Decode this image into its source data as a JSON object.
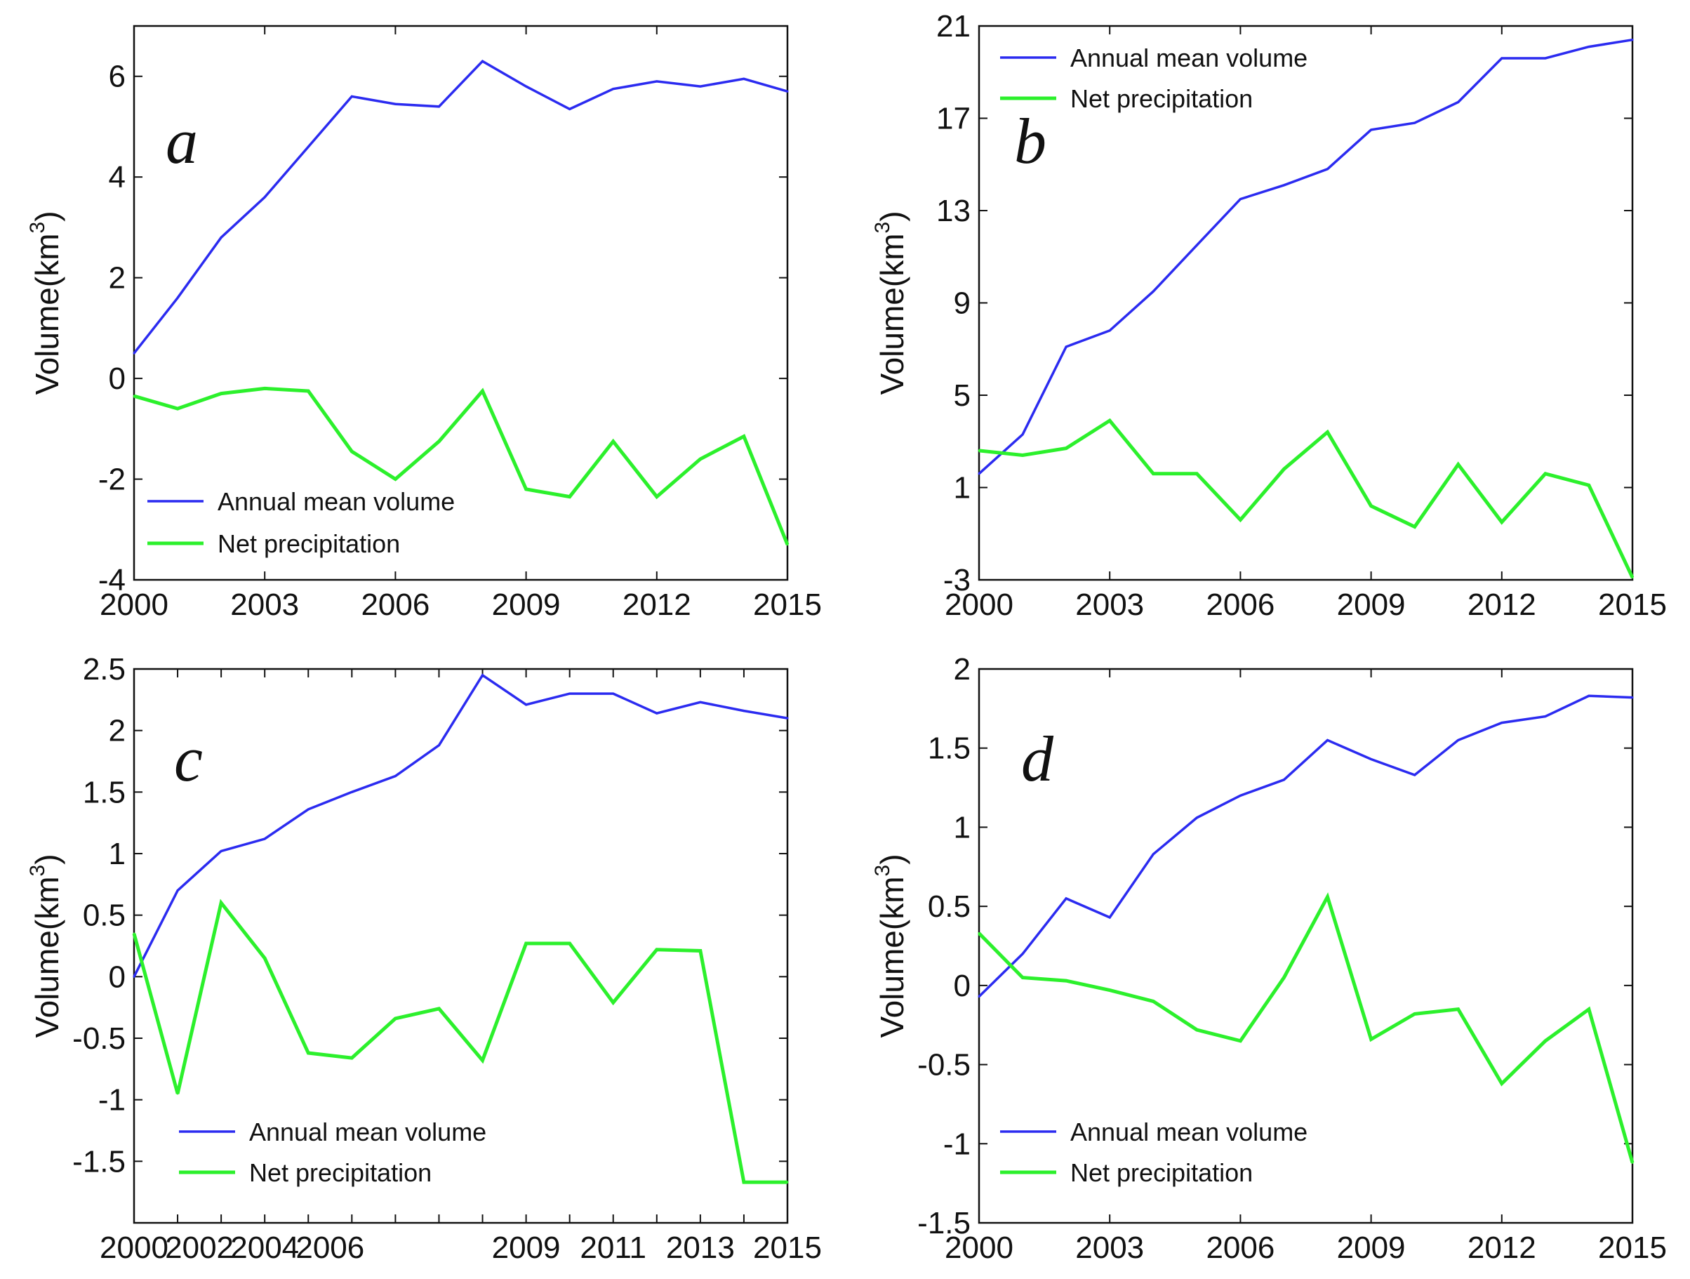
{
  "figure": {
    "blue_color": "#2B2BF0",
    "green_color": "#2CF02C"
  },
  "chart_data": [
    {
      "type": "line",
      "panel": "a",
      "ylabel": "Volume(km³)",
      "ylabel_main": "Volume(km",
      "ylabel_sup": "3",
      "ylabel_close": ")",
      "xlim": [
        2000,
        2015
      ],
      "ylim": [
        -4,
        7
      ],
      "xticks": [
        2000,
        2003,
        2006,
        2009,
        2012,
        2015
      ],
      "xtick_labels": [
        "2000",
        "2003",
        "2006",
        "2009",
        "2012",
        "2015"
      ],
      "yticks": [
        -4,
        -2,
        0,
        2,
        4,
        6
      ],
      "ytick_labels": [
        "-4",
        "-2",
        "0",
        "2",
        "4",
        "6"
      ],
      "legend_position": "bottom-left",
      "legend": [
        "Annual mean volume",
        "Net precipitation"
      ],
      "x": [
        2000,
        2001,
        2002,
        2003,
        2004,
        2005,
        2006,
        2007,
        2008,
        2009,
        2010,
        2011,
        2012,
        2013,
        2014,
        2015
      ],
      "series": [
        {
          "name": "Annual mean volume",
          "color": "#2B2BF0",
          "values": [
            0.5,
            1.6,
            2.8,
            3.6,
            4.6,
            5.6,
            5.45,
            5.4,
            6.3,
            5.8,
            5.35,
            5.75,
            5.9,
            5.8,
            5.95,
            5.7
          ]
        },
        {
          "name": "Net precipitation",
          "color": "#2CF02C",
          "values": [
            -0.35,
            -0.6,
            -0.3,
            -0.2,
            -0.25,
            -1.45,
            -2.0,
            -1.25,
            -0.25,
            -2.2,
            -2.35,
            -1.25,
            -2.35,
            -1.6,
            -1.15,
            -3.3
          ]
        }
      ]
    },
    {
      "type": "line",
      "panel": "b",
      "ylabel": "Volume(km³)",
      "ylabel_main": "Volume(km",
      "ylabel_sup": "3",
      "ylabel_close": ")",
      "xlim": [
        2000,
        2015
      ],
      "ylim": [
        -3,
        21
      ],
      "xticks": [
        2000,
        2003,
        2006,
        2009,
        2012,
        2015
      ],
      "xtick_labels": [
        "2000",
        "2003",
        "2006",
        "2009",
        "2012",
        "2015"
      ],
      "yticks": [
        -3,
        1,
        5,
        9,
        13,
        17,
        21
      ],
      "ytick_labels": [
        "-3",
        "1",
        "5",
        "9",
        "13",
        "17",
        "21"
      ],
      "legend_position": "top-left",
      "legend": [
        "Annual mean volume",
        "Net precipitation"
      ],
      "x": [
        2000,
        2001,
        2002,
        2003,
        2004,
        2005,
        2006,
        2007,
        2008,
        2009,
        2010,
        2011,
        2012,
        2013,
        2014,
        2015
      ],
      "series": [
        {
          "name": "Annual mean volume",
          "color": "#2B2BF0",
          "values": [
            1.6,
            3.3,
            7.1,
            7.8,
            9.5,
            11.5,
            13.5,
            14.1,
            14.8,
            16.5,
            16.8,
            17.7,
            19.6,
            19.6,
            20.1,
            20.4
          ]
        },
        {
          "name": "Net precipitation",
          "color": "#2CF02C",
          "values": [
            2.6,
            2.4,
            2.7,
            3.9,
            1.6,
            1.6,
            -0.4,
            1.8,
            3.4,
            0.2,
            -0.7,
            2.0,
            -0.5,
            1.6,
            1.1,
            -2.9
          ]
        }
      ]
    },
    {
      "type": "line",
      "panel": "c",
      "ylabel": "Volume(km³)",
      "ylabel_main": "Volume(km",
      "ylabel_sup": "3",
      "ylabel_close": ")",
      "xlim": [
        2000,
        2015
      ],
      "ylim": [
        -2,
        2.5
      ],
      "xticks": [
        2000,
        2001,
        2002,
        2003,
        2004,
        2005,
        2006,
        2007,
        2008,
        2009,
        2010,
        2011,
        2012,
        2013,
        2014,
        2015
      ],
      "xtick_labels": [
        "2000",
        "2002",
        "2004",
        "2006",
        "2009",
        "2011",
        "2013",
        "2015"
      ],
      "xtick_label_positions": [
        2000,
        2001.5,
        2003,
        2004.5,
        2009,
        2011,
        2013,
        2015
      ],
      "yticks": [
        -1.5,
        -1,
        -0.5,
        0,
        0.5,
        1,
        1.5,
        2,
        2.5
      ],
      "ytick_labels": [
        "-1.5",
        "-1",
        "-0.5",
        "0",
        "0.5",
        "1",
        "1.5",
        "2",
        "2.5"
      ],
      "legend_position": "bottom-left",
      "legend": [
        "Annual mean volume",
        "Net precipitation"
      ],
      "x": [
        2000,
        2001,
        2002,
        2003,
        2004,
        2005,
        2006,
        2007,
        2008,
        2009,
        2010,
        2011,
        2012,
        2013,
        2014,
        2015
      ],
      "series": [
        {
          "name": "Annual mean volume",
          "color": "#2B2BF0",
          "values": [
            0.0,
            0.7,
            1.02,
            1.12,
            1.36,
            1.5,
            1.63,
            1.88,
            2.45,
            2.21,
            2.3,
            2.3,
            2.14,
            2.23,
            2.16,
            2.1
          ]
        },
        {
          "name": "Net precipitation",
          "color": "#2CF02C",
          "values": [
            0.35,
            -0.95,
            0.6,
            0.15,
            -0.62,
            -0.66,
            -0.34,
            -0.26,
            -0.68,
            0.27,
            0.27,
            -0.21,
            0.22,
            0.21,
            -1.67,
            -1.67
          ]
        }
      ]
    },
    {
      "type": "line",
      "panel": "d",
      "ylabel": "Volume(km³)",
      "ylabel_main": "Volume(km",
      "ylabel_sup": "3",
      "ylabel_close": ")",
      "xlim": [
        2000,
        2015
      ],
      "ylim": [
        -1.5,
        2
      ],
      "xticks": [
        2000,
        2003,
        2006,
        2009,
        2012,
        2015
      ],
      "xtick_labels": [
        "2000",
        "2003",
        "2006",
        "2009",
        "2012",
        "2015"
      ],
      "yticks": [
        -1.5,
        -1,
        -0.5,
        0,
        0.5,
        1,
        1.5,
        2
      ],
      "ytick_labels": [
        "-1.5",
        "-1",
        "-0.5",
        "0",
        "0.5",
        "1",
        "1.5",
        "2"
      ],
      "legend_position": "bottom-left",
      "legend": [
        "Annual mean volume",
        "Net precipitation"
      ],
      "x": [
        2000,
        2001,
        2002,
        2003,
        2004,
        2005,
        2006,
        2007,
        2008,
        2009,
        2010,
        2011,
        2012,
        2013,
        2014,
        2015
      ],
      "series": [
        {
          "name": "Annual mean volume",
          "color": "#2B2BF0",
          "values": [
            -0.07,
            0.2,
            0.55,
            0.43,
            0.83,
            1.06,
            1.2,
            1.3,
            1.55,
            1.43,
            1.33,
            1.55,
            1.66,
            1.7,
            1.83,
            1.82
          ]
        },
        {
          "name": "Net precipitation",
          "color": "#2CF02C",
          "values": [
            0.33,
            0.05,
            0.03,
            -0.03,
            -0.1,
            -0.28,
            -0.35,
            0.05,
            0.56,
            -0.34,
            -0.18,
            -0.15,
            -0.62,
            -0.35,
            -0.15,
            -1.12
          ]
        }
      ]
    }
  ]
}
